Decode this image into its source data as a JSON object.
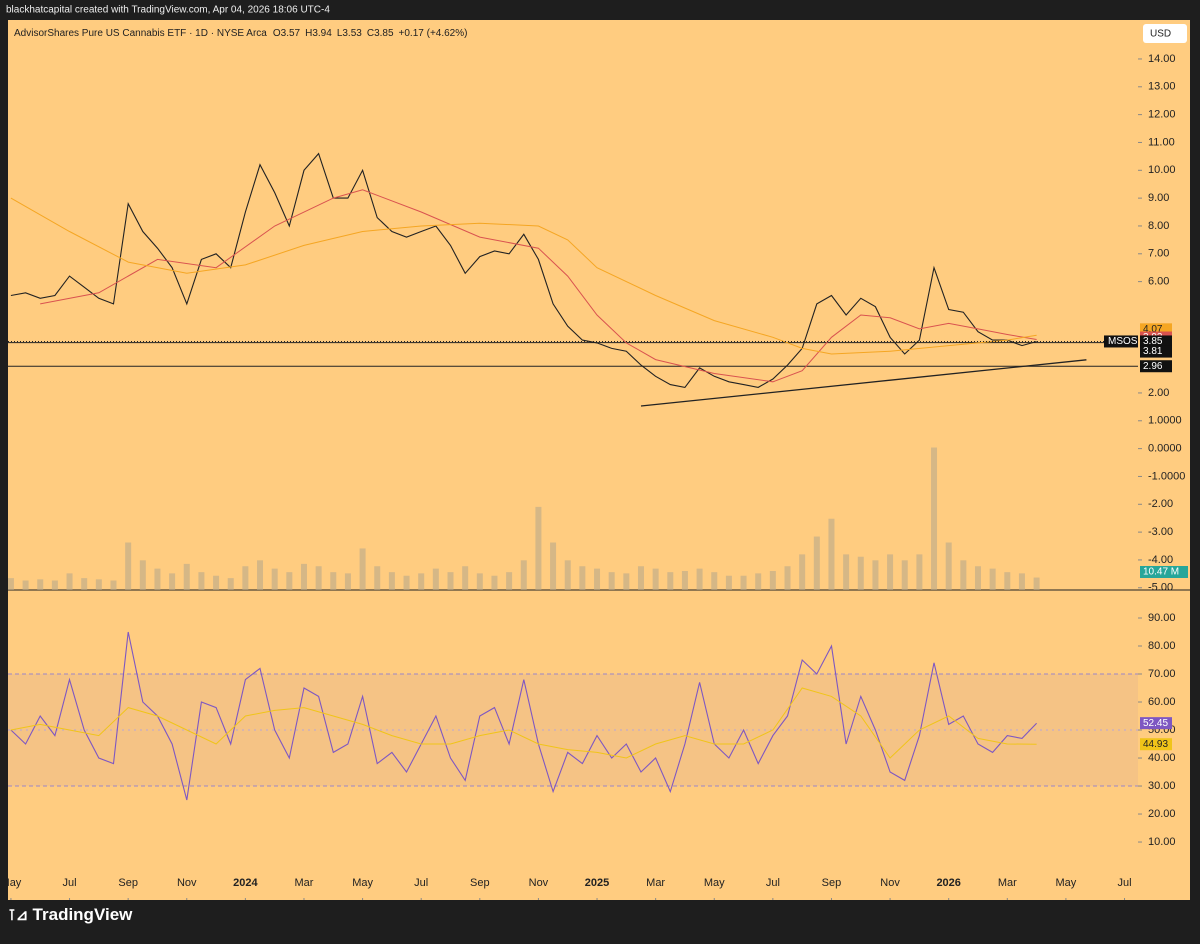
{
  "credit": "blackhatcapital created with TradingView.com, Apr 04, 2026 18:06 UTC-4",
  "header": {
    "title": "AdvisorShares Pure US Cannabis ETF · 1D · NYSE Arca",
    "open": "O3.57",
    "high": "H3.94",
    "low": "L3.53",
    "close": "C3.85",
    "change": "+0.17 (+4.62%)"
  },
  "currency": "USD",
  "symbol": "MSOS",
  "logo": "TradingView",
  "chart_data": [
    {
      "type": "line",
      "xlim": [
        -0.1,
        38.46
      ],
      "ylim": [
        -5.08,
        15.4
      ],
      "y2lim": [
        0,
        480
      ],
      "xticks": [
        {
          "value": 0,
          "label": "May"
        },
        {
          "value": 2,
          "label": "Jul"
        },
        {
          "value": 4,
          "label": "Sep"
        },
        {
          "value": 6,
          "label": "Nov"
        },
        {
          "value": 8,
          "label": "2024"
        },
        {
          "value": 10,
          "label": "Mar"
        },
        {
          "value": 12,
          "label": "May"
        },
        {
          "value": 14,
          "label": "Jul"
        },
        {
          "value": 16,
          "label": "Sep"
        },
        {
          "value": 18,
          "label": "Nov"
        },
        {
          "value": 20,
          "label": "2025"
        },
        {
          "value": 22,
          "label": "Mar"
        },
        {
          "value": 24,
          "label": "May"
        },
        {
          "value": 26,
          "label": "Jul"
        },
        {
          "value": 28,
          "label": "Sep"
        },
        {
          "value": 30,
          "label": "Nov"
        },
        {
          "value": 32,
          "label": "2026"
        },
        {
          "value": 34,
          "label": "Mar"
        },
        {
          "value": 36,
          "label": "May"
        },
        {
          "value": 38,
          "label": "Jul"
        }
      ],
      "yticks": [
        {
          "value": 14,
          "label": "14.00"
        },
        {
          "value": 13,
          "label": "13.00"
        },
        {
          "value": 12,
          "label": "12.00"
        },
        {
          "value": 11,
          "label": "11.00"
        },
        {
          "value": 10,
          "label": "10.00"
        },
        {
          "value": 9,
          "label": "9.00"
        },
        {
          "value": 8,
          "label": "8.00"
        },
        {
          "value": 7,
          "label": "7.00"
        },
        {
          "value": 6,
          "label": "6.00"
        },
        {
          "value": 2,
          "label": "2.00"
        },
        {
          "value": 1,
          "label": "1.0000"
        },
        {
          "value": 0,
          "label": "0.0000"
        },
        {
          "value": -1,
          "label": "-1.0000"
        },
        {
          "value": -2,
          "label": "-2.00"
        },
        {
          "value": -3,
          "label": "-3.00"
        },
        {
          "value": -4,
          "label": "-4.00"
        },
        {
          "value": -5,
          "label": "-5.00"
        }
      ],
      "series": [
        {
          "name": "MSOS",
          "color": "#222222",
          "x": [
            0,
            0.5,
            1,
            1.5,
            2,
            2.5,
            3,
            3.5,
            4,
            4.5,
            5,
            5.5,
            6,
            6.5,
            7,
            7.5,
            8,
            8.5,
            9,
            9.5,
            10,
            10.5,
            11,
            11.5,
            12,
            12.5,
            13,
            13.5,
            14,
            14.5,
            15,
            15.5,
            16,
            16.5,
            17,
            17.5,
            18,
            18.5,
            19,
            19.5,
            20,
            20.5,
            21,
            21.5,
            22,
            22.5,
            23,
            23.5,
            24,
            24.5,
            25,
            25.5,
            26,
            26.5,
            27,
            27.5,
            28,
            28.5,
            29,
            29.5,
            30,
            30.5,
            31,
            31.5,
            32,
            32.5,
            33,
            33.5,
            34,
            34.5,
            35
          ],
          "values": [
            5.5,
            5.6,
            5.4,
            5.5,
            6.2,
            5.8,
            5.4,
            5.2,
            8.8,
            7.8,
            7.2,
            6.5,
            5.2,
            6.8,
            7.0,
            6.5,
            8.5,
            10.2,
            9.2,
            8.0,
            10.0,
            10.6,
            9.0,
            9.0,
            10.0,
            8.3,
            7.8,
            7.6,
            7.8,
            8.0,
            7.3,
            6.3,
            6.9,
            7.1,
            7.0,
            7.7,
            6.8,
            5.2,
            4.4,
            3.9,
            3.8,
            3.6,
            3.5,
            3.0,
            2.6,
            2.3,
            2.2,
            2.9,
            2.6,
            2.4,
            2.3,
            2.2,
            2.5,
            3.0,
            3.6,
            5.2,
            5.5,
            4.8,
            5.4,
            5.1,
            4.0,
            3.4,
            3.9,
            6.5,
            5.0,
            4.9,
            4.2,
            3.9,
            3.9,
            3.7,
            3.85
          ]
        },
        {
          "color": "#d9534f",
          "x": [
            1,
            3,
            5,
            7,
            9,
            11,
            12,
            14,
            16,
            18,
            19,
            20,
            21,
            22,
            24,
            26,
            27,
            28,
            29,
            30,
            31,
            32,
            33,
            34,
            35
          ],
          "values": [
            5.2,
            5.6,
            6.8,
            6.5,
            8.0,
            9.0,
            9.3,
            8.5,
            7.6,
            7.2,
            6.2,
            4.8,
            3.8,
            3.2,
            2.7,
            2.4,
            2.8,
            4.0,
            4.8,
            4.7,
            4.3,
            4.5,
            4.3,
            4.1,
            3.92
          ]
        },
        {
          "color": "#f5a623",
          "x": [
            0,
            2,
            4,
            6,
            8,
            10,
            12,
            14,
            16,
            18,
            19,
            20,
            22,
            24,
            26,
            27,
            28,
            30,
            32,
            34,
            35
          ],
          "values": [
            9.0,
            7.8,
            6.7,
            6.3,
            6.6,
            7.3,
            7.8,
            8.0,
            8.1,
            8.0,
            7.5,
            6.5,
            5.5,
            4.6,
            4.0,
            3.6,
            3.4,
            3.5,
            3.7,
            3.9,
            4.07
          ]
        },
        {
          "type": "bar",
          "axis": "y2",
          "color": "#b9a98a",
          "x": [
            0,
            0.5,
            1,
            1.5,
            2,
            2.5,
            3,
            3.5,
            4,
            4.5,
            5,
            5.5,
            6,
            6.5,
            7,
            7.5,
            8,
            8.5,
            9,
            9.5,
            10,
            10.5,
            11,
            11.5,
            12,
            12.5,
            13,
            13.5,
            14,
            14.5,
            15,
            15.5,
            16,
            16.5,
            17,
            17.5,
            18,
            18.5,
            19,
            19.5,
            20,
            20.5,
            21,
            21.5,
            22,
            22.5,
            23,
            23.5,
            24,
            24.5,
            25,
            25.5,
            26,
            26.5,
            27,
            27.5,
            28,
            28.5,
            29,
            29.5,
            30,
            30.5,
            31,
            31.5,
            32,
            32.5,
            33,
            33.5,
            34,
            34.5,
            35
          ],
          "values": [
            10,
            8,
            9,
            8,
            14,
            10,
            9,
            8,
            40,
            25,
            18,
            14,
            22,
            15,
            12,
            10,
            20,
            25,
            18,
            15,
            22,
            20,
            15,
            14,
            35,
            20,
            15,
            12,
            14,
            18,
            15,
            20,
            14,
            12,
            15,
            25,
            70,
            40,
            25,
            20,
            18,
            15,
            14,
            20,
            18,
            15,
            16,
            18,
            15,
            12,
            12,
            14,
            16,
            20,
            30,
            45,
            60,
            30,
            28,
            25,
            30,
            25,
            30,
            120,
            40,
            25,
            20,
            18,
            15,
            14,
            10.47
          ],
          "value_label": "10.47 M",
          "label_color": "#26a69a"
        }
      ],
      "levels": [
        3.81,
        2.96
      ],
      "trendline": {
        "x": [
          21.5,
          36.7
        ],
        "y": [
          1.53,
          3.19
        ]
      }
    },
    {
      "type": "line",
      "xlim": [
        -0.1,
        38.46
      ],
      "ylim": [
        -10.7,
        100
      ],
      "yticks": [
        {
          "value": 90,
          "label": "90.00"
        },
        {
          "value": 80,
          "label": "80.00"
        },
        {
          "value": 70,
          "label": "70.00"
        },
        {
          "value": 60,
          "label": "60.00"
        },
        {
          "value": 50,
          "label": "50.00"
        },
        {
          "value": 40,
          "label": "40.00"
        },
        {
          "value": 30,
          "label": "30.00"
        },
        {
          "value": 20,
          "label": "20.00"
        },
        {
          "value": 10,
          "label": "10.00"
        }
      ],
      "band": [
        30,
        70
      ],
      "midline": 50,
      "series": [
        {
          "color": "#7e57c2",
          "x": [
            0,
            0.5,
            1,
            1.5,
            2,
            2.5,
            3,
            3.5,
            4,
            4.5,
            5,
            5.5,
            6,
            6.5,
            7,
            7.5,
            8,
            8.5,
            9,
            9.5,
            10,
            10.5,
            11,
            11.5,
            12,
            12.5,
            13,
            13.5,
            14,
            14.5,
            15,
            15.5,
            16,
            16.5,
            17,
            17.5,
            18,
            18.5,
            19,
            19.5,
            20,
            20.5,
            21,
            21.5,
            22,
            22.5,
            23,
            23.5,
            24,
            24.5,
            25,
            25.5,
            26,
            26.5,
            27,
            27.5,
            28,
            28.5,
            29,
            29.5,
            30,
            30.5,
            31,
            31.5,
            32,
            32.5,
            33,
            33.5,
            34,
            34.5,
            35
          ],
          "values": [
            50,
            45,
            55,
            48,
            68,
            50,
            40,
            38,
            85,
            60,
            55,
            45,
            25,
            60,
            58,
            45,
            68,
            72,
            50,
            40,
            65,
            62,
            42,
            45,
            62,
            38,
            42,
            35,
            45,
            55,
            40,
            32,
            55,
            58,
            45,
            68,
            45,
            28,
            42,
            38,
            48,
            40,
            45,
            35,
            40,
            28,
            45,
            67,
            45,
            40,
            50,
            38,
            48,
            55,
            75,
            70,
            80,
            45,
            62,
            50,
            35,
            32,
            48,
            74,
            52,
            55,
            45,
            42,
            48,
            47,
            52.45
          ]
        },
        {
          "color": "#f0c419",
          "x": [
            0,
            1,
            2,
            3,
            4,
            5,
            6,
            7,
            8,
            9,
            10,
            11,
            12,
            13,
            14,
            15,
            16,
            17,
            18,
            19,
            20,
            21,
            22,
            23,
            24,
            25,
            26,
            27,
            28,
            29,
            30,
            31,
            32,
            33,
            34,
            35
          ],
          "values": [
            50,
            52,
            50,
            48,
            58,
            55,
            50,
            45,
            55,
            57,
            58,
            55,
            52,
            48,
            45,
            45,
            48,
            50,
            45,
            43,
            42,
            40,
            45,
            48,
            45,
            45,
            50,
            65,
            62,
            55,
            40,
            50,
            55,
            47,
            45,
            44.93
          ]
        }
      ]
    }
  ]
}
